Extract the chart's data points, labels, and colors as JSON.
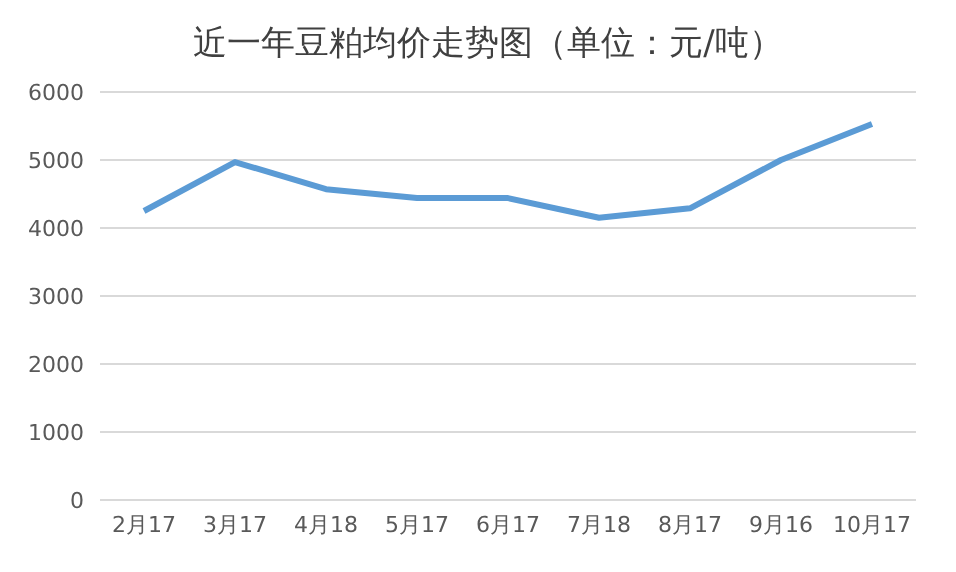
{
  "chart_data": {
    "type": "line",
    "title": "近一年豆粕均价走势图（单位：元/吨）",
    "categories": [
      "2月17",
      "3月17",
      "4月18",
      "5月17",
      "6月17",
      "7月18",
      "8月17",
      "9月16",
      "10月17"
    ],
    "series": [
      {
        "color": "#5b9bd5",
        "values": [
          4250,
          4970,
          4570,
          4440,
          4440,
          4150,
          4290,
          5000,
          5530
        ]
      }
    ],
    "ylim": [
      0,
      6000
    ],
    "yticks": [
      0,
      1000,
      2000,
      3000,
      4000,
      5000,
      6000
    ],
    "grid": "y",
    "marker": "none",
    "line_style": "solid",
    "legend": false
  }
}
